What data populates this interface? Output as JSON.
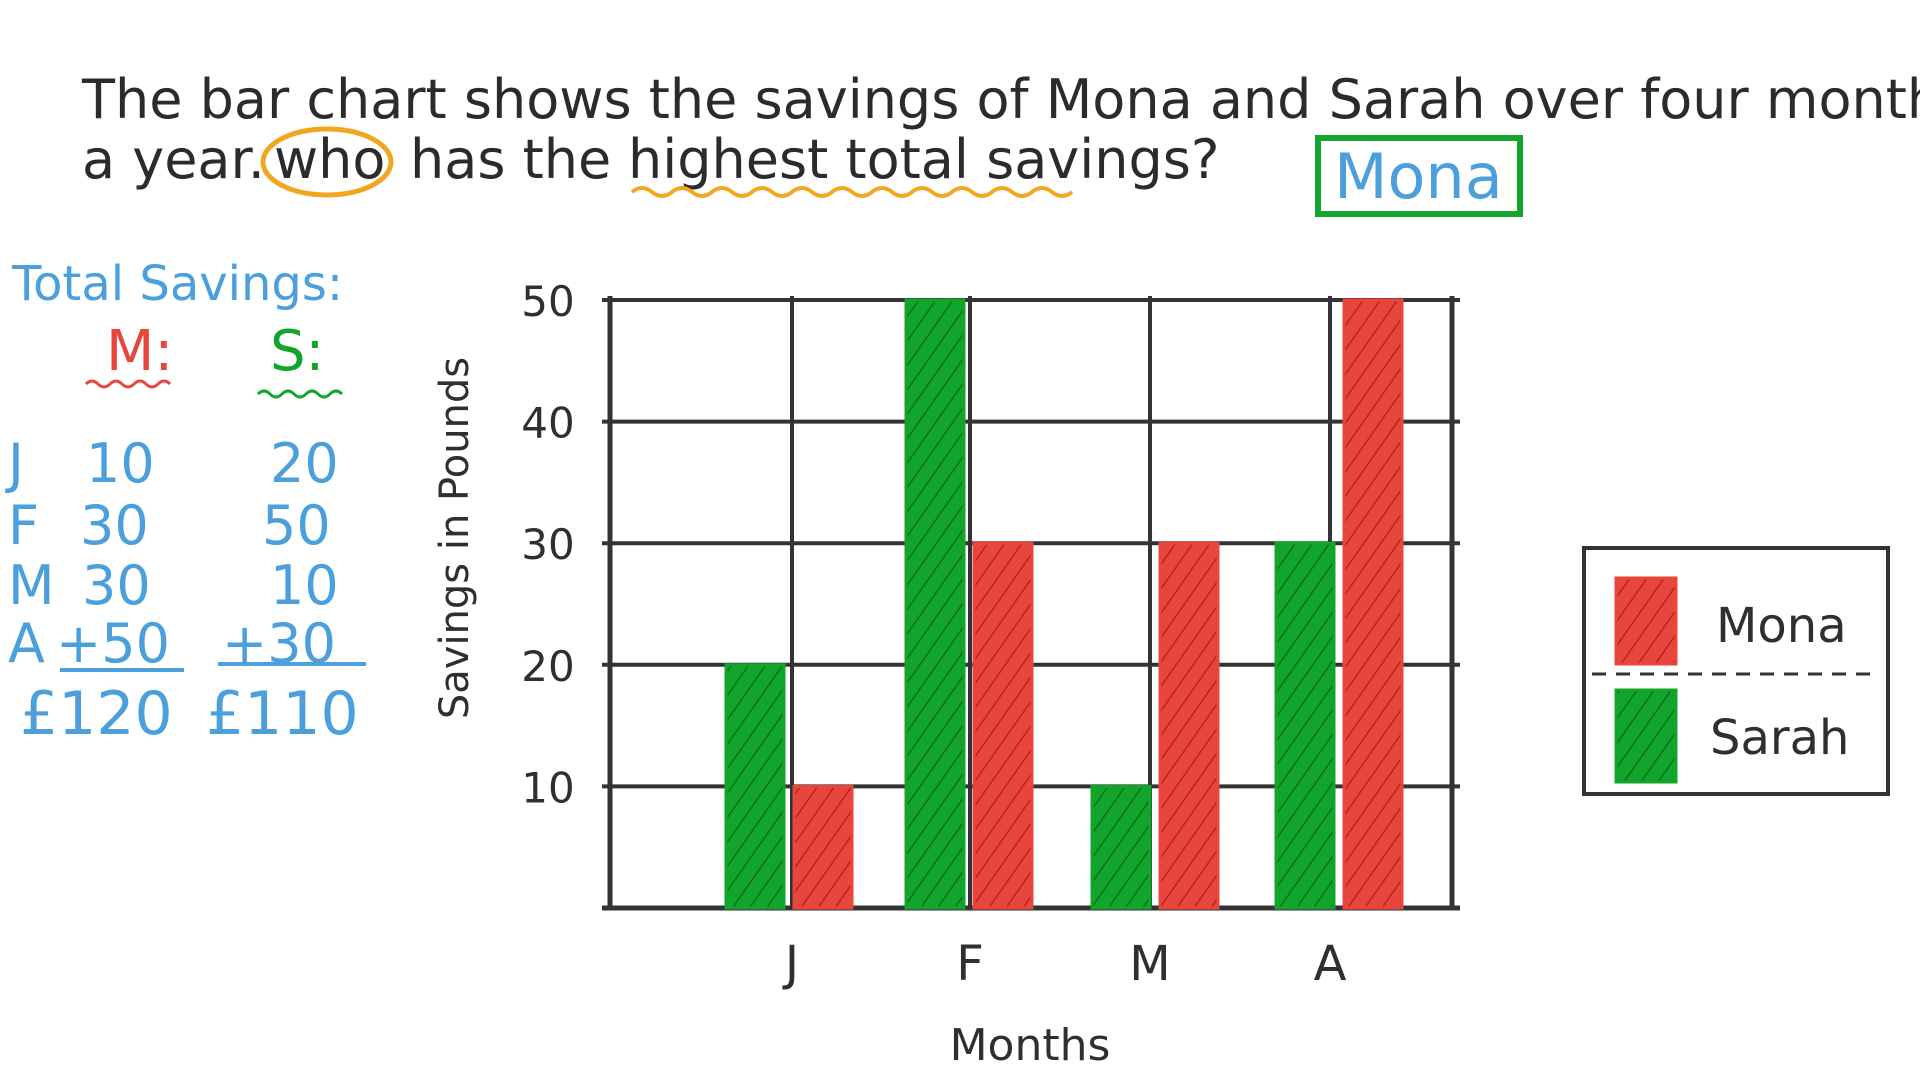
{
  "question": {
    "line1": "The bar chart shows the savings of Mona and Sarah over four months of",
    "line2_prefix": "a year.",
    "line2_circled": "who",
    "line2_middle": "has the",
    "line2_underlined": "highest total savings?",
    "answer": "Mona"
  },
  "working": {
    "title": "Total Savings:",
    "col_m": "M:",
    "col_s": "S:",
    "rows": [
      {
        "label": "J",
        "m": "10",
        "s": "20"
      },
      {
        "label": "F",
        "m": "30",
        "s": "50"
      },
      {
        "label": "M",
        "m": "30",
        "s": "10"
      },
      {
        "label": "A",
        "m": "+50",
        "s": "+30"
      }
    ],
    "total_m": "£120",
    "total_s": "£110"
  },
  "colors": {
    "mona": "#e8453c",
    "sarah": "#12a52b",
    "blue": "#4a9fdc",
    "orange": "#f2a61f",
    "grid": "#333333"
  },
  "chart_data": {
    "type": "bar",
    "categories": [
      "J",
      "F",
      "M",
      "A"
    ],
    "series": [
      {
        "name": "Sarah",
        "values": [
          20,
          50,
          10,
          30
        ]
      },
      {
        "name": "Mona",
        "values": [
          10,
          30,
          30,
          50
        ]
      }
    ],
    "yticks": [
      "10",
      "20",
      "30",
      "40",
      "50"
    ],
    "ylim": [
      0,
      50
    ],
    "xlabel": "Months",
    "ylabel": "Savings in Pounds",
    "grid": true,
    "legend": {
      "position": "right",
      "entries": [
        "Mona",
        "Sarah"
      ]
    }
  }
}
